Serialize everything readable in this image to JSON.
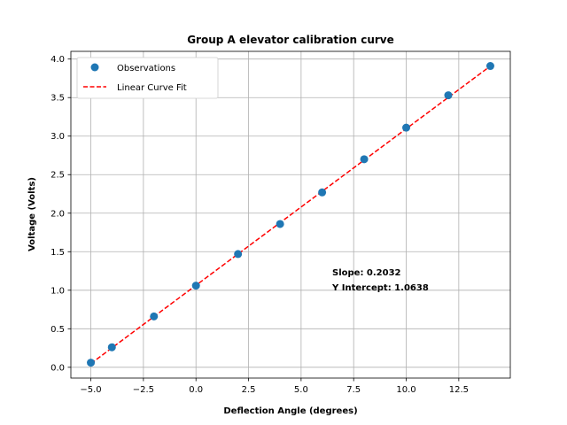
{
  "chart_data": {
    "type": "scatter",
    "title": "Group A elevator calibration curve",
    "xlabel": "Deflection Angle (degrees)",
    "ylabel": "Voltage (Volts)",
    "xlim": [
      -5.95,
      14.95
    ],
    "ylim": [
      -0.14,
      4.1
    ],
    "xticks": [
      -5.0,
      -2.5,
      0.0,
      2.5,
      5.0,
      7.5,
      10.0,
      12.5
    ],
    "xtick_labels": [
      "−5.0",
      "−2.5",
      "0.0",
      "2.5",
      "5.0",
      "7.5",
      "10.0",
      "12.5"
    ],
    "yticks": [
      0.0,
      0.5,
      1.0,
      1.5,
      2.0,
      2.5,
      3.0,
      3.5,
      4.0
    ],
    "ytick_labels": [
      "0.0",
      "0.5",
      "1.0",
      "1.5",
      "2.0",
      "2.5",
      "3.0",
      "3.5",
      "4.0"
    ],
    "grid": true,
    "legend_position": "top-left",
    "series": [
      {
        "name": "Observations",
        "type": "scatter",
        "color": "#1f77b4",
        "x": [
          -5,
          -4,
          -2,
          0,
          2,
          4,
          6,
          8,
          10,
          12,
          14
        ],
        "y": [
          0.06,
          0.26,
          0.66,
          1.06,
          1.47,
          1.86,
          2.27,
          2.7,
          3.11,
          3.53,
          3.91
        ]
      },
      {
        "name": "Linear Curve Fit",
        "type": "line",
        "style": "dashed",
        "color": "#ff0000",
        "x": [
          -5,
          14
        ],
        "y": [
          0.0478,
          3.9086
        ]
      }
    ],
    "annotations": [
      "Slope:  0.2032",
      "Y Intercept:  1.0638"
    ]
  }
}
